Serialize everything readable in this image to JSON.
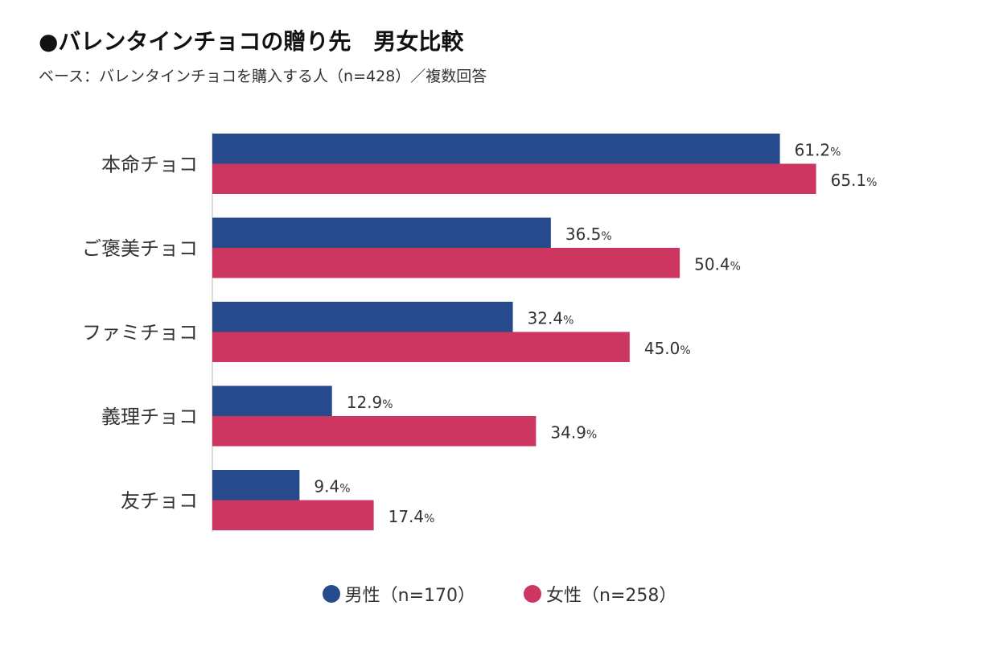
{
  "header": {
    "title": "●バレンタインチョコの贈り先　男女比較",
    "subtitle": "ベース：バレンタインチョコを購入する人（n=428）／複数回答"
  },
  "colors": {
    "male": "#264a8c",
    "female": "#cc3660"
  },
  "chart_data": {
    "type": "bar",
    "orientation": "horizontal",
    "categories": [
      "本命チョコ",
      "ご褒美チョコ",
      "ファミチョコ",
      "義理チョコ",
      "友チョコ"
    ],
    "series": [
      {
        "name": "男性（n=170）",
        "values": [
          61.2,
          36.5,
          32.4,
          12.9,
          9.4
        ]
      },
      {
        "name": "女性（n=258）",
        "values": [
          65.1,
          50.4,
          45.0,
          34.9,
          17.4
        ]
      }
    ],
    "value_suffix": "%",
    "xlim": [
      0,
      100
    ],
    "grid": false,
    "legend_position": "bottom-center"
  }
}
